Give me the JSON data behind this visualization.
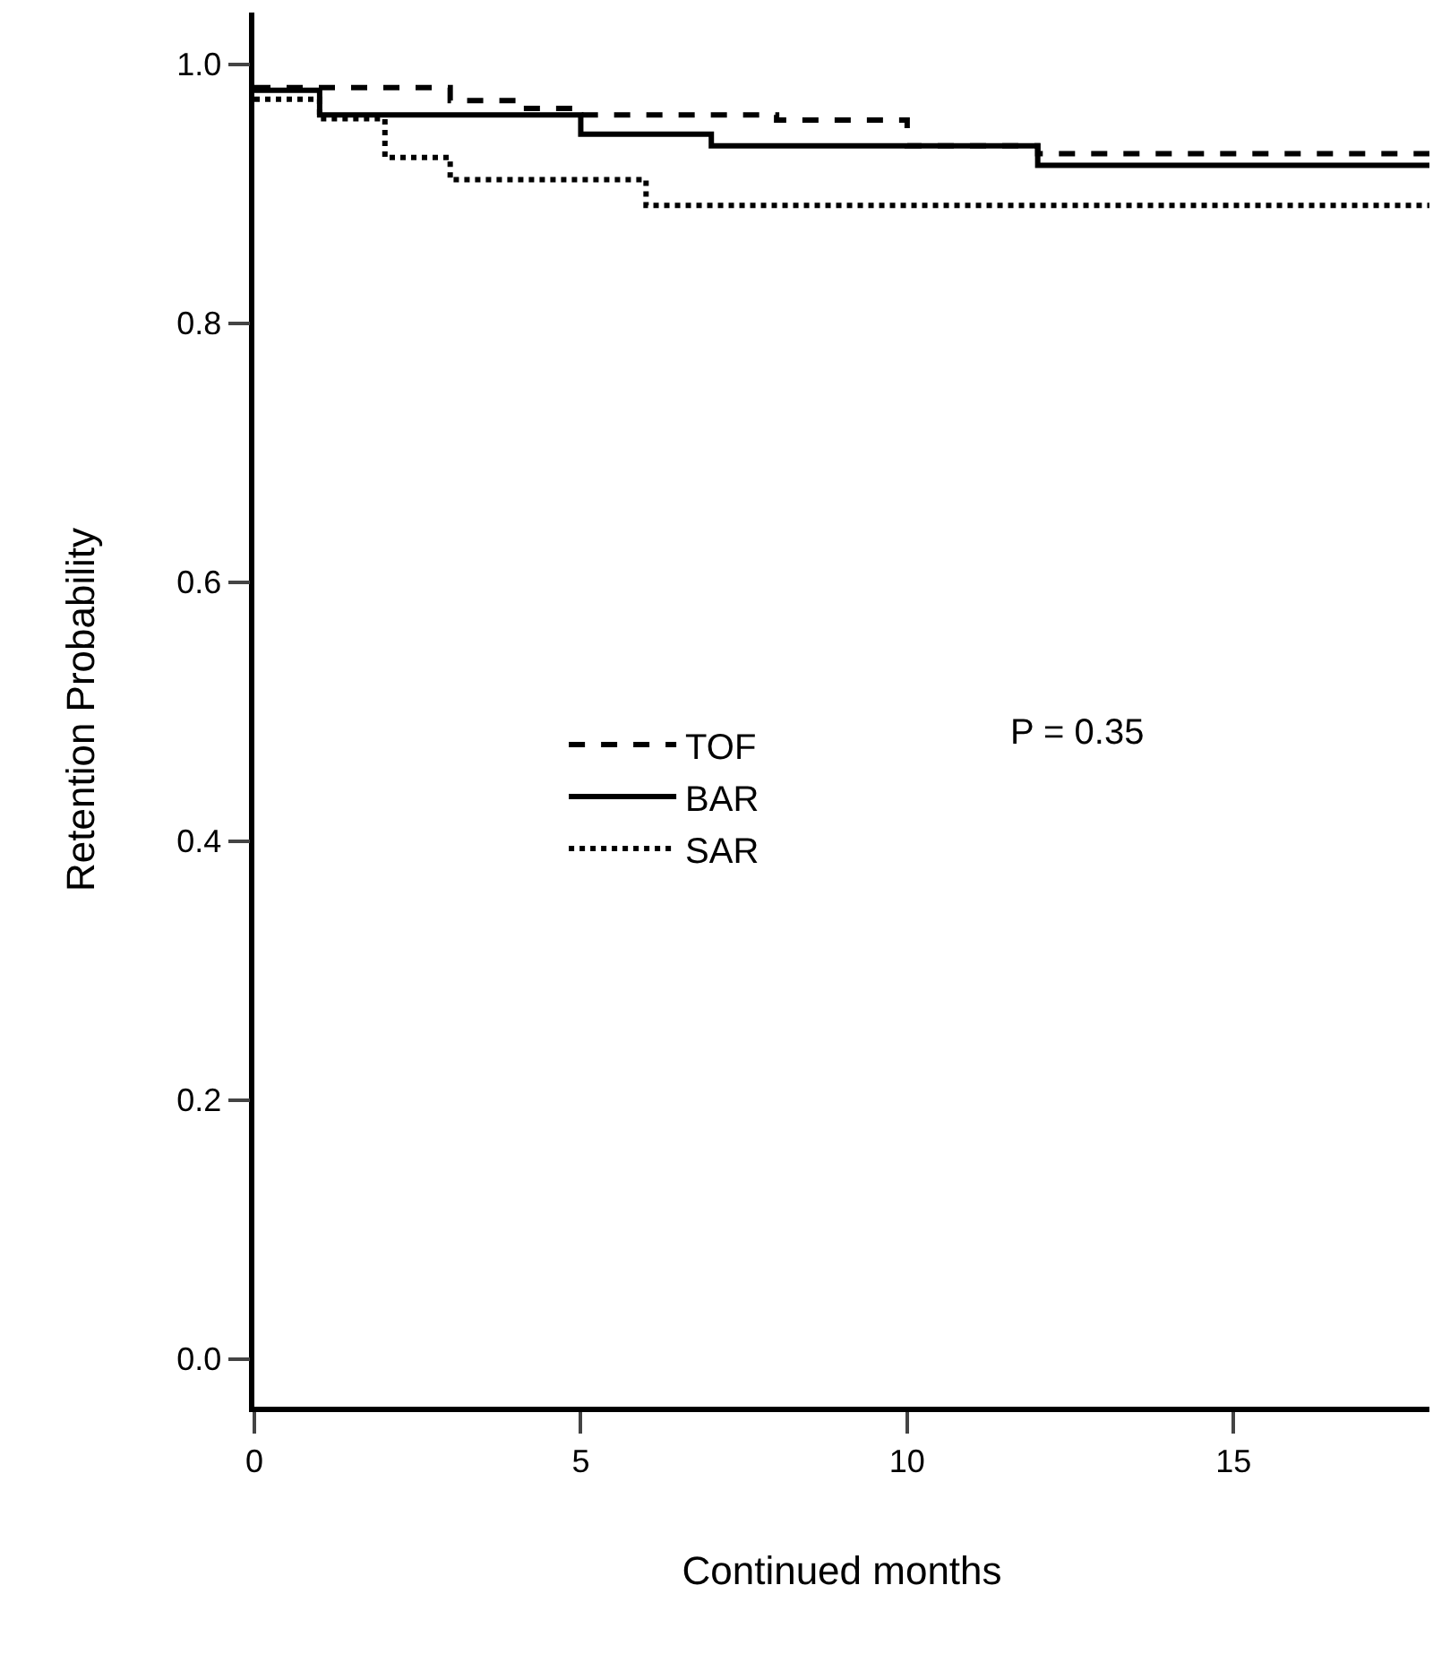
{
  "chart_data": {
    "type": "step",
    "xlabel": "Continued months",
    "ylabel": "Retention Probability",
    "xlim": [
      0,
      18
    ],
    "ylim": [
      -0.037,
      1.04
    ],
    "xticks": [
      0,
      5,
      10,
      15
    ],
    "yticks": [
      {
        "value": 0,
        "label": "0.0"
      },
      0.2,
      0.4,
      0.6,
      0.8,
      {
        "value": 1,
        "label": "1.0"
      }
    ],
    "grid": false,
    "legend": "center",
    "marker": "none",
    "series": [
      {
        "name": "TOF",
        "color": "#000000",
        "line_style": "dashed",
        "x": [
          0,
          3,
          4,
          5,
          8,
          10,
          12,
          18
        ],
        "values": [
          0.982,
          0.972,
          0.966,
          0.961,
          0.957,
          0.937,
          0.931,
          0.931
        ]
      },
      {
        "name": "BAR",
        "color": "#000000",
        "line_style": "solid",
        "x": [
          0,
          1,
          5,
          7,
          12,
          18
        ],
        "values": [
          0.98,
          0.961,
          0.946,
          0.937,
          0.922,
          0.922
        ]
      },
      {
        "name": "SAR",
        "color": "#000000",
        "line_style": "dotted",
        "x": [
          0,
          1,
          2,
          3,
          6,
          18
        ],
        "values": [
          0.973,
          0.958,
          0.928,
          0.911,
          0.891,
          0.891
        ]
      }
    ],
    "annotations": [
      "P = 0.35"
    ]
  }
}
